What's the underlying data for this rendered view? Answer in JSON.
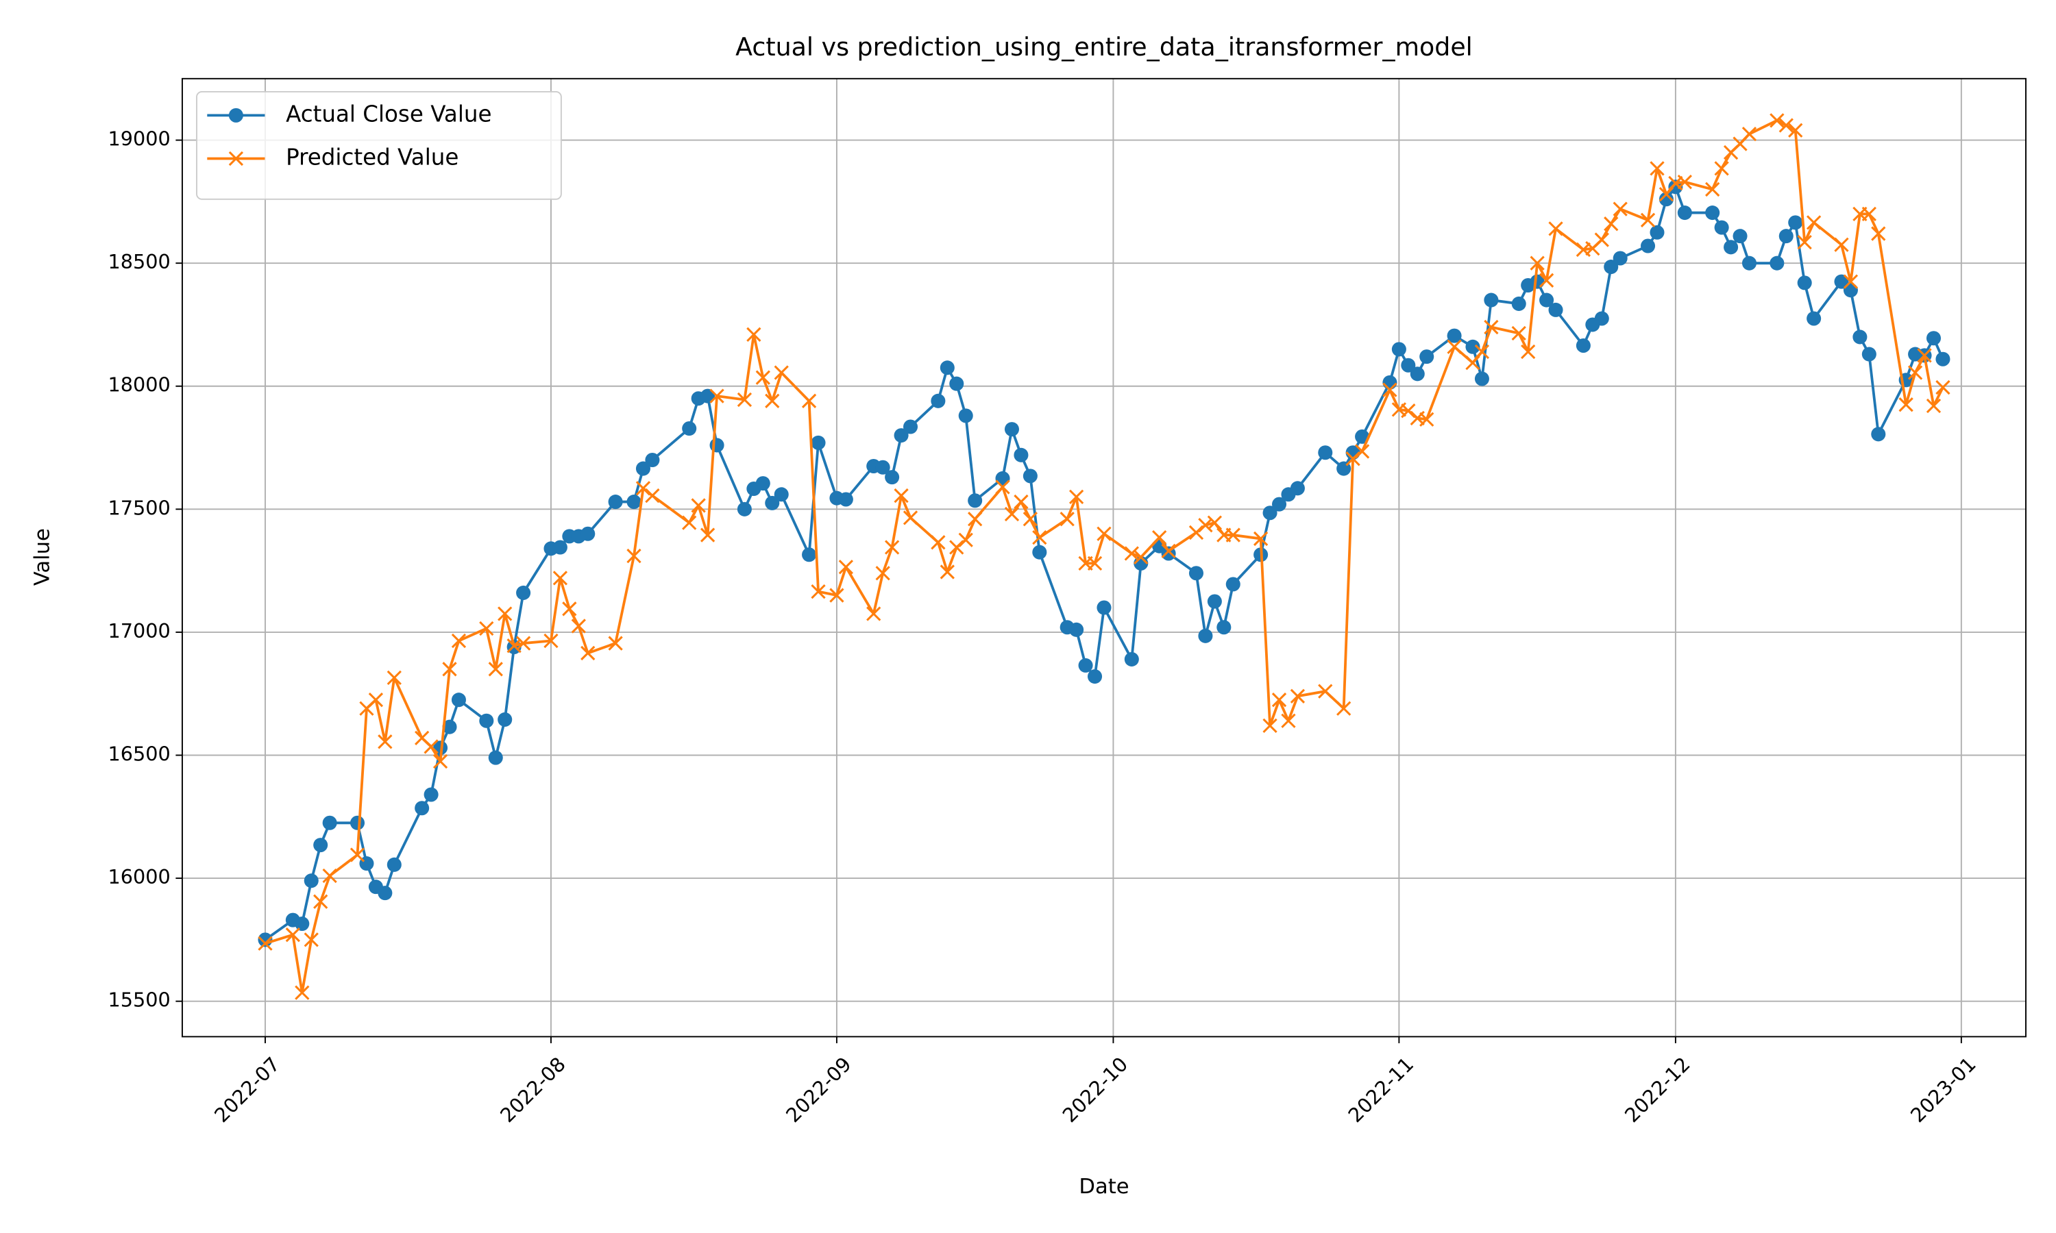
{
  "chart_data": {
    "type": "line",
    "title": "Actual vs prediction_using_entire_data_itransformer_model",
    "xlabel": "Date",
    "ylabel": "Value",
    "x": [
      19174,
      19177,
      19178,
      19179,
      19180,
      19181,
      19184,
      19185,
      19186,
      19187,
      19188,
      19191,
      19192,
      19193,
      19194,
      19195,
      19198,
      19199,
      19200,
      19201,
      19202,
      19205,
      19206,
      19207,
      19208,
      19209,
      19212,
      19214,
      19215,
      19216,
      19220,
      19221,
      19222,
      19223,
      19226,
      19227,
      19228,
      19229,
      19230,
      19233,
      19234,
      19236,
      19237,
      19240,
      19241,
      19242,
      19243,
      19244,
      19247,
      19248,
      19249,
      19250,
      19251,
      19254,
      19255,
      19256,
      19257,
      19258,
      19261,
      19262,
      19263,
      19264,
      19265,
      19268,
      19269,
      19271,
      19272,
      19275,
      19276,
      19277,
      19278,
      19279,
      19282,
      19283,
      19284,
      19285,
      19286,
      19289,
      19291,
      19292,
      19293,
      19296,
      19297,
      19298,
      19299,
      19300,
      19303,
      19305,
      19306,
      19307,
      19310,
      19311,
      19312,
      19313,
      19314,
      19317,
      19318,
      19319,
      19320,
      19321,
      19324,
      19325,
      19326,
      19327,
      19328,
      19331,
      19332,
      19333,
      19334,
      19335,
      19338,
      19339,
      19340,
      19341,
      19342,
      19345,
      19346,
      19347,
      19348,
      19349,
      19352,
      19353,
      19354,
      19355,
      19356
    ],
    "series": [
      {
        "name": "Actual Close Value",
        "color": "#1f77b4",
        "marker": "o",
        "values": [
          15750,
          15830,
          15815,
          15990,
          16135,
          16225,
          16225,
          16060,
          15965,
          15940,
          16055,
          16285,
          16340,
          16530,
          16615,
          16725,
          16640,
          16490,
          16645,
          16940,
          17160,
          17340,
          17345,
          17390,
          17390,
          17400,
          17530,
          17530,
          17665,
          17700,
          17828,
          17950,
          17960,
          17760,
          17500,
          17583,
          17605,
          17525,
          17560,
          17315,
          17770,
          17545,
          17540,
          17675,
          17670,
          17630,
          17800,
          17835,
          17940,
          18075,
          18010,
          17880,
          17535,
          17625,
          17825,
          17720,
          17635,
          17325,
          17020,
          17010,
          16865,
          16820,
          17100,
          16890,
          17280,
          17350,
          17320,
          17240,
          16985,
          17125,
          17020,
          17195,
          17315,
          17485,
          17520,
          17560,
          17585,
          17730,
          17665,
          17730,
          17795,
          18015,
          18150,
          18085,
          18050,
          18120,
          18205,
          18160,
          18030,
          18350,
          18335,
          18410,
          18425,
          18350,
          18310,
          18165,
          18250,
          18275,
          18485,
          18520,
          18570,
          18625,
          18760,
          18810,
          18705,
          18705,
          18645,
          18565,
          18610,
          18500,
          18500,
          18610,
          18665,
          18420,
          18275,
          18425,
          18390,
          18200,
          18130,
          17805,
          18025,
          18130,
          18125,
          18195,
          18110
        ]
      },
      {
        "name": "Predicted Value",
        "color": "#ff7f0e",
        "marker": "x",
        "values": [
          15735,
          15770,
          15535,
          15750,
          15905,
          16010,
          16095,
          16690,
          16725,
          16555,
          16815,
          16570,
          16535,
          16475,
          16850,
          16965,
          17015,
          16850,
          17075,
          16945,
          16955,
          16965,
          17220,
          17095,
          17025,
          16915,
          16955,
          17310,
          17585,
          17555,
          17445,
          17515,
          17395,
          17960,
          17945,
          18210,
          18035,
          17940,
          18055,
          17940,
          17165,
          17150,
          17265,
          17075,
          17240,
          17345,
          17555,
          17465,
          17365,
          17245,
          17345,
          17375,
          17460,
          17590,
          17480,
          17530,
          17460,
          17385,
          17460,
          17550,
          17280,
          17280,
          17400,
          17320,
          17305,
          17385,
          17330,
          17405,
          17435,
          17445,
          17395,
          17395,
          17380,
          16620,
          16725,
          16640,
          16740,
          16760,
          16690,
          17705,
          17735,
          17985,
          17905,
          17900,
          17870,
          17865,
          18160,
          18095,
          18140,
          18240,
          18215,
          18140,
          18500,
          18430,
          18640,
          18555,
          18560,
          18595,
          18660,
          18720,
          18675,
          18885,
          18780,
          18825,
          18830,
          18800,
          18885,
          18950,
          18985,
          19025,
          19080,
          19060,
          19040,
          18585,
          18665,
          18575,
          18425,
          18700,
          18700,
          18620,
          17925,
          18055,
          18125,
          17920,
          17995
        ]
      }
    ],
    "xlim": [
      19165,
      19365
    ],
    "xticks": [
      {
        "value": 19174,
        "label": "2022-07"
      },
      {
        "value": 19205,
        "label": "2022-08"
      },
      {
        "value": 19236,
        "label": "2022-09"
      },
      {
        "value": 19266,
        "label": "2022-10"
      },
      {
        "value": 19297,
        "label": "2022-11"
      },
      {
        "value": 19327,
        "label": "2022-12"
      },
      {
        "value": 19358,
        "label": "2023-01"
      }
    ],
    "ylim": [
      15356,
      19250
    ],
    "yticks": [
      15500,
      16000,
      16500,
      17000,
      17500,
      18000,
      18500,
      19000
    ],
    "grid": true,
    "legend": "upper left"
  }
}
